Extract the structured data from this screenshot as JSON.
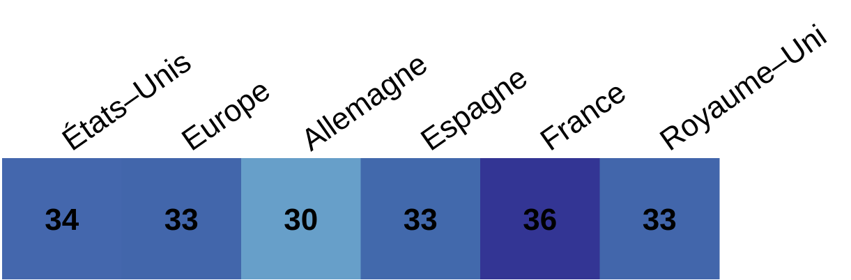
{
  "chart_data": {
    "type": "heatmap",
    "title": "",
    "xlabel": "",
    "ylabel": "",
    "categories": [
      "États–Unis",
      "Europe",
      "Allemagne",
      "Espagne",
      "France",
      "Royaume–Uni"
    ],
    "values": [
      34,
      33,
      30,
      33,
      36,
      33
    ],
    "colors": [
      "#4467ad",
      "#4266ab",
      "#679fc9",
      "#4269ac",
      "#333594",
      "#4266ab"
    ],
    "legend": "none",
    "grid": false
  }
}
